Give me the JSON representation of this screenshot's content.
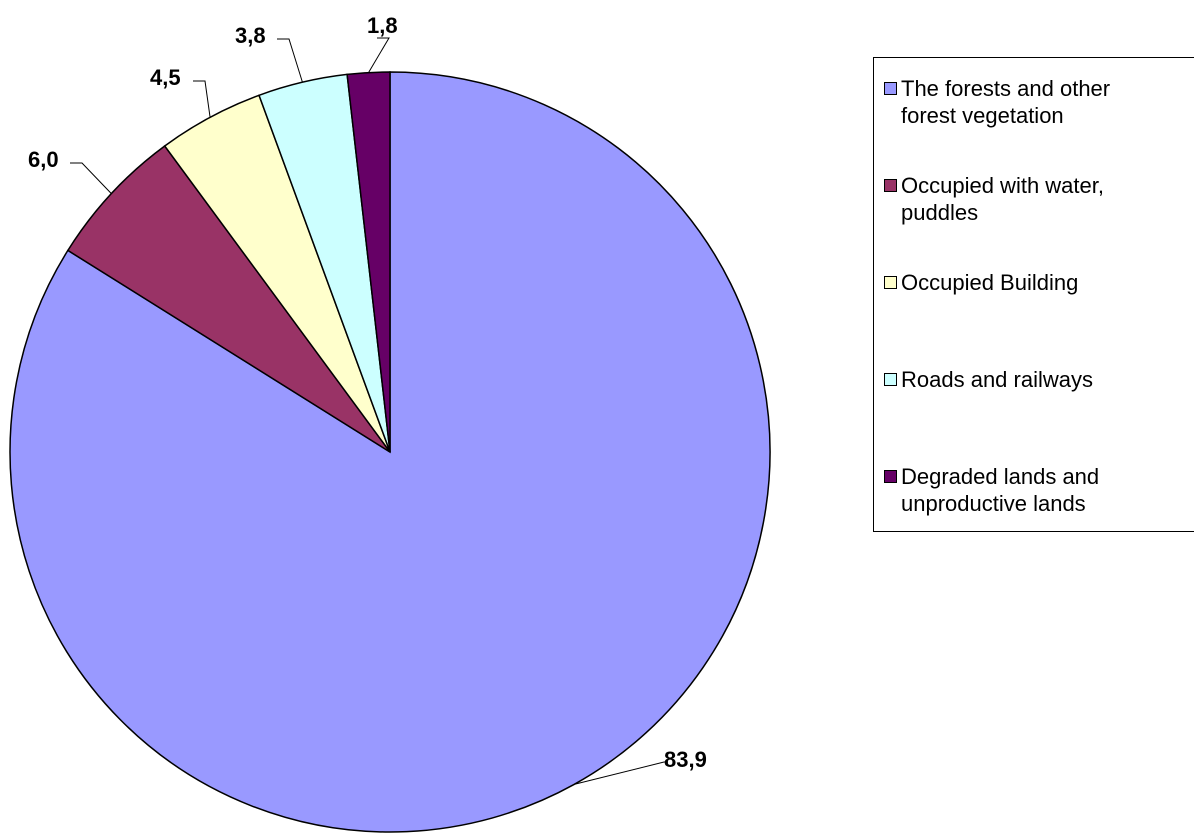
{
  "chart_data": {
    "type": "pie",
    "title": "",
    "categories": [
      "The forests and other forest vegetation",
      "Occupied with water, puddles",
      "Occupied Building",
      "Roads and railways",
      "Degraded lands and unproductive lands"
    ],
    "values": [
      83.9,
      6.0,
      4.5,
      3.8,
      1.8
    ],
    "data_labels": [
      "83,9",
      "6,0",
      "4,5",
      "3,8",
      "1,8"
    ],
    "colors": [
      "#9999ff",
      "#993366",
      "#ffffcc",
      "#ccffff",
      "#660066"
    ],
    "start_angle_deg": 0,
    "direction": "clockwise",
    "legend_position": "right"
  },
  "legend": {
    "items": [
      {
        "label": "The forests and other forest vegetation",
        "color": "#9999ff"
      },
      {
        "label": "Occupied with water, puddles",
        "color": "#993366"
      },
      {
        "label": "Occupied Building",
        "color": "#ffffcc"
      },
      {
        "label": "Roads and railways",
        "color": "#ccffff"
      },
      {
        "label": "Degraded lands and unproductive lands",
        "color": "#660066"
      }
    ]
  }
}
